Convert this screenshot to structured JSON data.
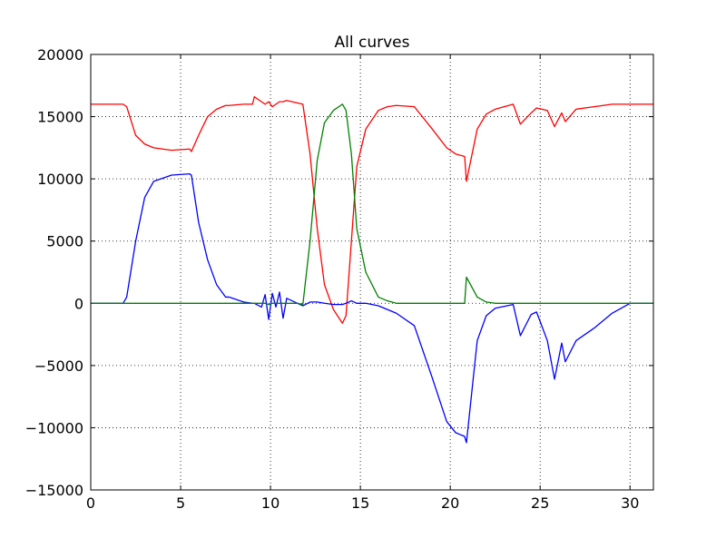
{
  "chart_data": {
    "type": "line",
    "title": "All curves",
    "x": [
      0,
      1.8,
      2,
      2.5,
      3,
      3.5,
      4.5,
      5.5,
      5.6,
      6,
      6.5,
      7,
      7.5,
      7.7,
      8.5,
      9,
      9.1,
      9.5,
      9.7,
      9.9,
      10.1,
      10.3,
      10.5,
      10.7,
      10.9,
      11.5,
      11.8,
      12.2,
      12.6,
      13,
      13.5,
      14,
      14.2,
      14.5,
      14.8,
      15.3,
      16,
      16.5,
      17,
      18,
      19,
      19.8,
      20.3,
      20.8,
      20.9,
      21.5,
      22,
      22.5,
      23.5,
      23.9,
      24.5,
      24.8,
      25.4,
      25.8,
      26.2,
      26.4,
      27,
      28,
      29,
      30,
      31.3
    ],
    "series": [
      {
        "color": "#ff0000",
        "values": [
          16000,
          16000,
          15800,
          13500,
          12800,
          12500,
          12300,
          12400,
          12200,
          13500,
          15000,
          15600,
          15900,
          15900,
          16000,
          16000,
          16600,
          16200,
          16000,
          16200,
          15800,
          16000,
          16200,
          16200,
          16300,
          16100,
          16000,
          12000,
          6000,
          1500,
          -500,
          -1600,
          -1000,
          5000,
          11000,
          14000,
          15500,
          15800,
          15900,
          15800,
          14000,
          12500,
          12000,
          11800,
          9800,
          14000,
          15200,
          15600,
          16000,
          14400,
          15300,
          15700,
          15500,
          14200,
          15300,
          14600,
          15600,
          15800,
          16000,
          16000,
          16000
        ]
      },
      {
        "color": "#0000ff",
        "values": [
          0,
          0,
          500,
          5000,
          8500,
          9800,
          10300,
          10400,
          10300,
          6500,
          3500,
          1500,
          500,
          500,
          100,
          0,
          0,
          -300,
          700,
          -1300,
          800,
          -300,
          900,
          -1200,
          400,
          0,
          -200,
          100,
          100,
          0,
          -100,
          -100,
          0,
          200,
          0,
          0,
          -200,
          -500,
          -800,
          -1800,
          -6000,
          -9500,
          -10400,
          -10700,
          -11200,
          -3000,
          -1000,
          -400,
          -100,
          -2600,
          -900,
          -700,
          -3000,
          -6100,
          -3200,
          -4700,
          -3000,
          -2000,
          -800,
          0,
          0
        ]
      },
      {
        "color": "#008000",
        "values": [
          0,
          0,
          0,
          0,
          0,
          0,
          0,
          0,
          0,
          0,
          0,
          0,
          0,
          0,
          0,
          0,
          0,
          0,
          0,
          -100,
          0,
          0,
          0,
          0,
          0,
          0,
          -100,
          5000,
          11500,
          14500,
          15500,
          16000,
          15500,
          12000,
          6000,
          2500,
          500,
          200,
          0,
          0,
          0,
          0,
          0,
          0,
          2100,
          500,
          100,
          0,
          0,
          0,
          0,
          0,
          0,
          0,
          0,
          0,
          0,
          0,
          0,
          0,
          0
        ]
      }
    ],
    "xlim": [
      0,
      31.3
    ],
    "ylim": [
      -15000,
      20000
    ],
    "xticks": [
      0,
      5,
      10,
      15,
      20,
      25,
      30
    ],
    "yticks": [
      {
        "value": -15000,
        "label": "−15000"
      },
      {
        "value": -10000,
        "label": "−10000"
      },
      {
        "value": -5000,
        "label": "−5000"
      },
      0,
      5000,
      10000,
      15000,
      20000
    ],
    "grid": true
  }
}
